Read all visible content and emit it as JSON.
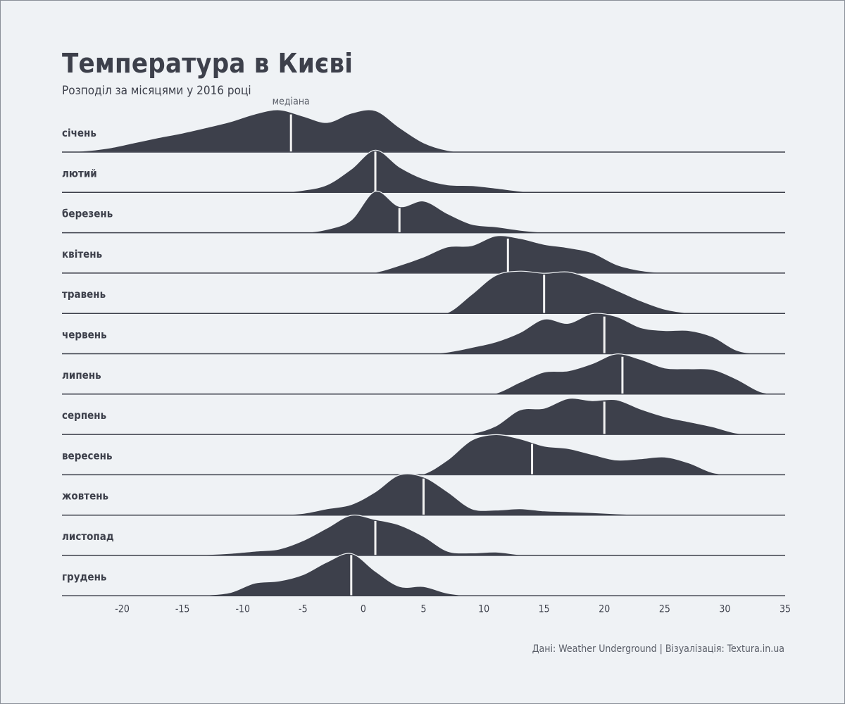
{
  "title": "Температура в Києві",
  "subtitle": "Розподіл за місяцями у 2016 році",
  "caption": "Дані: Weather Underground | Візуалізація: Textura.in.ua",
  "colors": {
    "background": "#eff2f5",
    "ridge_fill": "#3d404b",
    "median_line": "#f2f2f2",
    "baseline": "#3d404b",
    "text": "#3d404b"
  },
  "chart_data": {
    "type": "area",
    "subtype": "ridgeline",
    "title": "Температура в Києві",
    "subtitle": "Розподіл за місяцями у 2016 році",
    "xlabel": "",
    "ylabel": "",
    "xlim": [
      -25,
      35
    ],
    "x_ticks": [
      -20,
      -15,
      -10,
      -5,
      0,
      5,
      10,
      15,
      20,
      25,
      30,
      35
    ],
    "grid": false,
    "annotation": {
      "text": "медіана",
      "month_index": 0
    },
    "x": [
      -25,
      -23,
      -21,
      -19,
      -17,
      -15,
      -13,
      -11,
      -9,
      -7,
      -5,
      -3,
      -1,
      1,
      3,
      5,
      7,
      9,
      11,
      13,
      15,
      17,
      19,
      21,
      23,
      25,
      27,
      29,
      31,
      33,
      35
    ],
    "series": [
      {
        "name": "січень",
        "median": -6,
        "values": [
          0,
          0.03,
          0.1,
          0.22,
          0.34,
          0.45,
          0.58,
          0.72,
          0.9,
          1.0,
          0.85,
          0.7,
          0.92,
          0.98,
          0.58,
          0.22,
          0.04,
          0,
          0,
          0,
          0,
          0,
          0,
          0,
          0,
          0,
          0,
          0,
          0,
          0,
          0
        ]
      },
      {
        "name": "лютий",
        "median": 1,
        "values": [
          0,
          0,
          0,
          0,
          0,
          0,
          0,
          0,
          0,
          0,
          0.05,
          0.18,
          0.55,
          1.0,
          0.6,
          0.32,
          0.18,
          0.16,
          0.1,
          0.03,
          0,
          0,
          0,
          0,
          0,
          0,
          0,
          0,
          0,
          0,
          0
        ]
      },
      {
        "name": "березень",
        "median": 3,
        "values": [
          0,
          0,
          0,
          0,
          0,
          0,
          0,
          0,
          0,
          0,
          0,
          0.08,
          0.3,
          0.98,
          0.62,
          0.75,
          0.45,
          0.2,
          0.14,
          0.06,
          0.01,
          0,
          0,
          0,
          0,
          0,
          0,
          0,
          0,
          0,
          0
        ]
      },
      {
        "name": "квітень",
        "median": 12,
        "values": [
          0,
          0,
          0,
          0,
          0,
          0,
          0,
          0,
          0,
          0,
          0,
          0,
          0,
          0.02,
          0.18,
          0.38,
          0.62,
          0.65,
          0.88,
          0.82,
          0.68,
          0.6,
          0.48,
          0.2,
          0.06,
          0.01,
          0,
          0,
          0,
          0,
          0
        ]
      },
      {
        "name": "травень",
        "median": 15,
        "values": [
          0,
          0,
          0,
          0,
          0,
          0,
          0,
          0,
          0,
          0,
          0,
          0,
          0,
          0,
          0,
          0,
          0.02,
          0.45,
          0.9,
          1.0,
          0.95,
          0.98,
          0.8,
          0.55,
          0.3,
          0.1,
          0.01,
          0,
          0,
          0,
          0
        ]
      },
      {
        "name": "червень",
        "median": 20,
        "values": [
          0,
          0,
          0,
          0,
          0,
          0,
          0,
          0,
          0,
          0,
          0,
          0,
          0,
          0,
          0,
          0,
          0.04,
          0.15,
          0.28,
          0.5,
          0.82,
          0.72,
          0.95,
          0.88,
          0.62,
          0.55,
          0.55,
          0.4,
          0.08,
          0,
          0
        ]
      },
      {
        "name": "липень",
        "median": 21.5,
        "values": [
          0,
          0,
          0,
          0,
          0,
          0,
          0,
          0,
          0,
          0,
          0,
          0,
          0,
          0,
          0,
          0,
          0,
          0,
          0.02,
          0.28,
          0.52,
          0.55,
          0.72,
          0.95,
          0.82,
          0.62,
          0.6,
          0.58,
          0.35,
          0.05,
          0
        ]
      },
      {
        "name": "серпень",
        "median": 20,
        "values": [
          0,
          0,
          0,
          0,
          0,
          0,
          0,
          0,
          0,
          0,
          0,
          0,
          0,
          0,
          0,
          0,
          0,
          0.02,
          0.2,
          0.58,
          0.62,
          0.85,
          0.8,
          0.82,
          0.6,
          0.42,
          0.3,
          0.18,
          0.03,
          0,
          0
        ]
      },
      {
        "name": "вересень",
        "median": 14,
        "values": [
          0,
          0,
          0,
          0,
          0,
          0,
          0,
          0,
          0,
          0,
          0,
          0,
          0,
          0,
          0,
          0.02,
          0.35,
          0.82,
          0.95,
          0.85,
          0.68,
          0.62,
          0.48,
          0.35,
          0.38,
          0.42,
          0.28,
          0.05,
          0,
          0,
          0
        ]
      },
      {
        "name": "жовтень",
        "median": 5,
        "values": [
          0,
          0,
          0,
          0,
          0,
          0,
          0,
          0,
          0,
          0.01,
          0.04,
          0.15,
          0.25,
          0.55,
          0.95,
          0.9,
          0.55,
          0.15,
          0.12,
          0.15,
          0.1,
          0.08,
          0.06,
          0.03,
          0.01,
          0,
          0,
          0,
          0,
          0,
          0
        ]
      },
      {
        "name": "листопад",
        "median": 1,
        "values": [
          0,
          0,
          0,
          0,
          0,
          0.01,
          0.02,
          0.05,
          0.1,
          0.15,
          0.35,
          0.65,
          0.95,
          0.85,
          0.72,
          0.45,
          0.1,
          0.06,
          0.08,
          0.02,
          0,
          0,
          0,
          0,
          0,
          0,
          0,
          0,
          0,
          0,
          0
        ]
      },
      {
        "name": "грудень",
        "median": -1,
        "values": [
          0,
          0,
          0,
          0,
          0,
          0.01,
          0.02,
          0.08,
          0.3,
          0.35,
          0.5,
          0.8,
          1.0,
          0.58,
          0.22,
          0.22,
          0.06,
          0,
          0,
          0,
          0,
          0,
          0,
          0,
          0,
          0,
          0,
          0,
          0,
          0,
          0
        ]
      }
    ]
  }
}
